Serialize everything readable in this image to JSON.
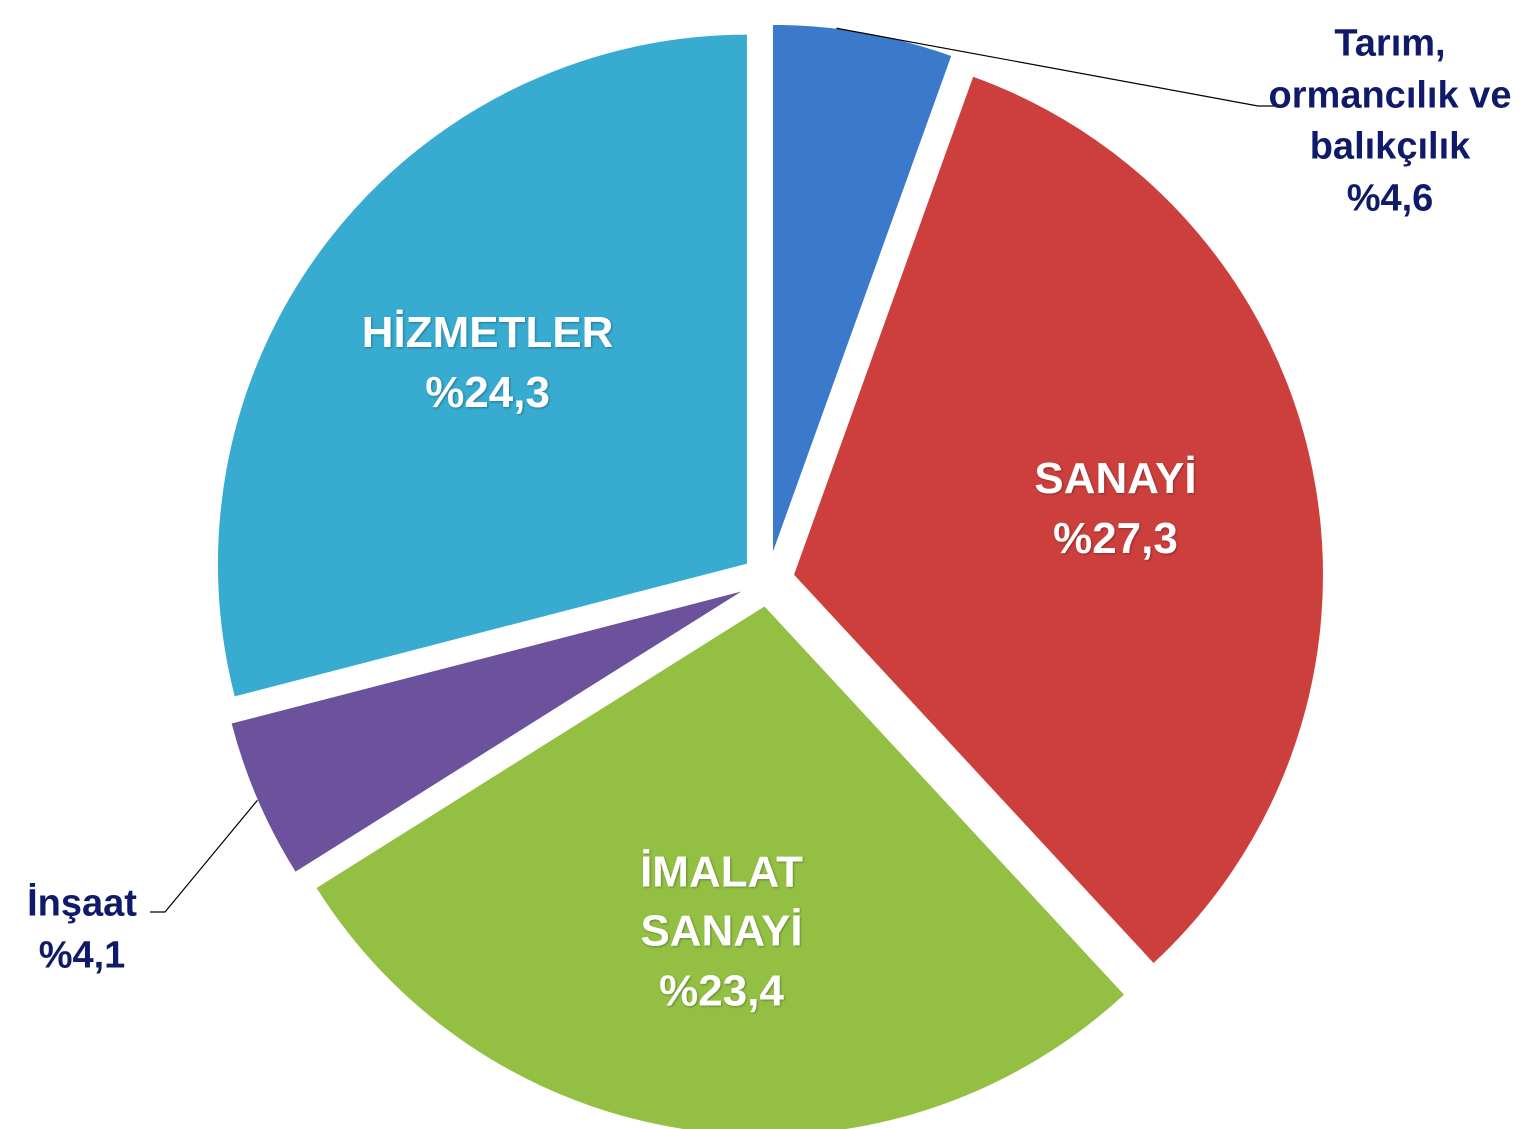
{
  "chart_data": {
    "type": "pie",
    "categories": [
      "Tarım, ormancılık ve balıkçılık",
      "SANAYİ",
      "İMALAT SANAYİ",
      "İnşaat",
      "HİZMETLER"
    ],
    "values": [
      4.6,
      27.3,
      23.4,
      4.1,
      24.3
    ],
    "value_labels": [
      "%4,6",
      "%27,3",
      "%23,4",
      "%4,1",
      "%24,3"
    ],
    "colors": [
      "#3b7acb",
      "#cc3f3c",
      "#93c043",
      "#6c519c",
      "#37abd0"
    ]
  }
}
